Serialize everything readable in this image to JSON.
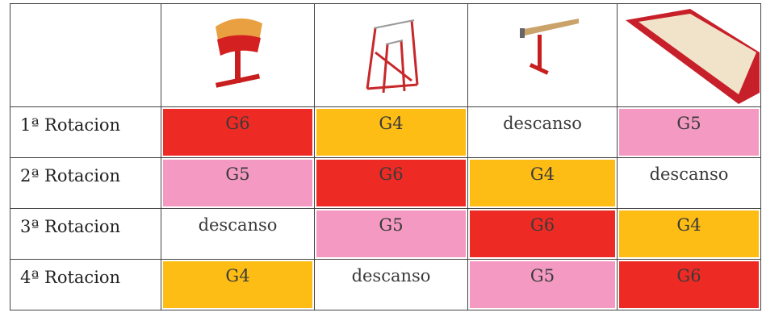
{
  "table": {
    "rows": [
      {
        "label": "1ª Rotacion",
        "cells": [
          {
            "text": "G6",
            "color": "#ee2a24"
          },
          {
            "text": "G4",
            "color": "#fdbd14"
          },
          {
            "text": "descanso",
            "color": "#ffffff"
          },
          {
            "text": "G5",
            "color": "#f49ac2"
          }
        ]
      },
      {
        "label": "2ª Rotacion",
        "cells": [
          {
            "text": "G5",
            "color": "#f49ac2"
          },
          {
            "text": "G6",
            "color": "#ee2a24"
          },
          {
            "text": "G4",
            "color": "#fdbd14"
          },
          {
            "text": "descanso",
            "color": "#ffffff"
          }
        ]
      },
      {
        "label": "3ª Rotacion",
        "cells": [
          {
            "text": "descanso",
            "color": "#ffffff"
          },
          {
            "text": "G5",
            "color": "#f49ac2"
          },
          {
            "text": "G6",
            "color": "#ee2a24"
          },
          {
            "text": "G4",
            "color": "#fdbd14"
          }
        ]
      },
      {
        "label": "4ª Rotacion",
        "cells": [
          {
            "text": "G4",
            "color": "#fdbd14"
          },
          {
            "text": "descanso",
            "color": "#ffffff"
          },
          {
            "text": "G5",
            "color": "#f49ac2"
          },
          {
            "text": "G6",
            "color": "#ee2a24"
          }
        ]
      }
    ]
  }
}
